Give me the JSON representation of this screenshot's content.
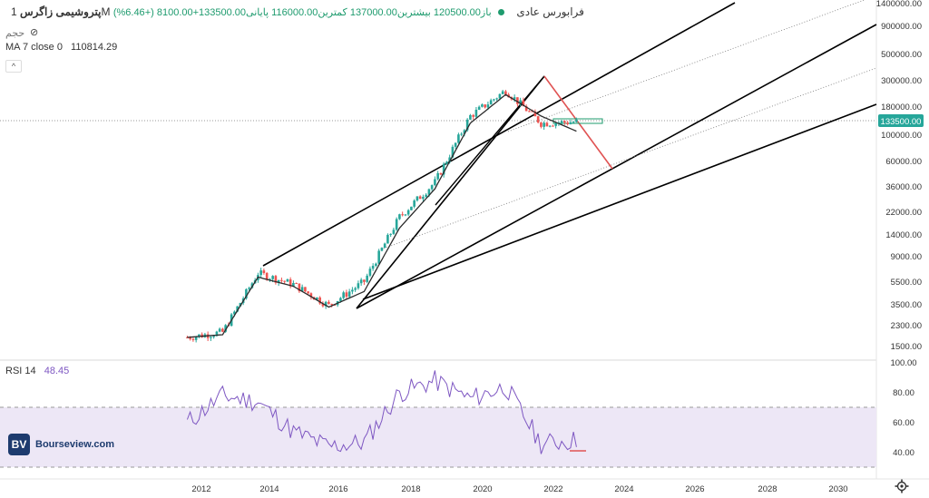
{
  "legend": {
    "symbol": "پتروشیمی زاگرس",
    "timeframe": "1M",
    "exchange": "فرابورس عادی",
    "ohlc_text": "باز120500.00  بیشترین137000.00  کمترین116000.00  پایانی133500.00+8100.00 (+6.46%)",
    "volume_label": "حجم",
    "ma_label": "MA 7 close 0",
    "ma_value": "110814.29",
    "rsi_label": "RSI 14",
    "rsi_value": "48.45"
  },
  "price_axis": {
    "ticks": [
      "1400000.00",
      "900000.00",
      "500000.00",
      "300000.00",
      "180000.00",
      "100000.00",
      "60000.00",
      "36000.00",
      "22000.00",
      "14000.00",
      "9000.00",
      "5500.00",
      "3500.00",
      "2300.00",
      "1500.00"
    ],
    "last_price_label": "133500.00"
  },
  "rsi_axis": {
    "ticks": [
      "100.00",
      "80.00",
      "60.00",
      "40.00"
    ]
  },
  "time_axis": {
    "ticks": [
      "2012",
      "2014",
      "2016",
      "2018",
      "2020",
      "2022",
      "2024",
      "2026",
      "2028",
      "2030"
    ]
  },
  "watermark": {
    "logo": "BV",
    "text": "Bourseview.com"
  },
  "colors": {
    "up": "#26a69a",
    "down": "#ef5350",
    "ma": "#2b2b2b",
    "rsi": "#7e57c2",
    "rsi_band": "#ede7f6",
    "trend": "#000000",
    "red_trend": "#e05353"
  },
  "chart_data": [
    {
      "type": "line",
      "title": "پتروشیمی زاگرس",
      "scale": "log",
      "x": [
        "2012",
        "2013",
        "2014",
        "2015",
        "2016",
        "2017",
        "2018",
        "2019",
        "2020",
        "2021",
        "2022",
        "2023"
      ],
      "series": [
        {
          "name": "Close",
          "values": [
            1800,
            2000,
            6500,
            5200,
            3400,
            5500,
            20000,
            40000,
            150000,
            250000,
            130000,
            133500
          ]
        },
        {
          "name": "MA 7 close 0",
          "values": [
            1800,
            1900,
            6000,
            5000,
            3300,
            4500,
            16000,
            35000,
            130000,
            230000,
            150000,
            110814.29
          ]
        }
      ],
      "ylim": [
        1200,
        1600000
      ],
      "xlim": [
        2011.5,
        2031
      ]
    },
    {
      "type": "line",
      "title": "RSI 14",
      "x": [
        "2012",
        "2013",
        "2014",
        "2015",
        "2016",
        "2017",
        "2018",
        "2019",
        "2020",
        "2021",
        "2022",
        "2023"
      ],
      "series": [
        {
          "name": "RSI 14",
          "values": [
            60,
            78,
            74,
            54,
            44,
            47,
            80,
            88,
            76,
            84,
            46,
            48.45
          ]
        }
      ],
      "ylim": [
        20,
        100
      ],
      "bands": [
        30,
        70
      ]
    }
  ]
}
